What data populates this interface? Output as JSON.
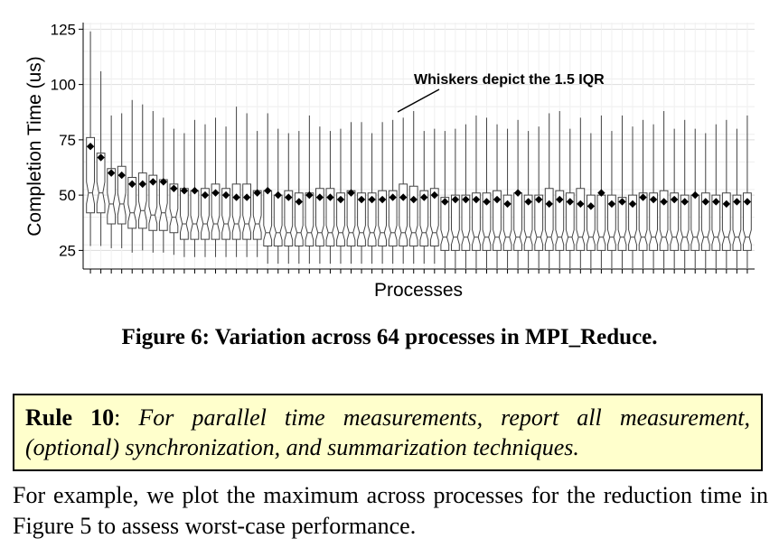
{
  "chart_data": {
    "type": "box",
    "xlabel": "Processes",
    "ylabel": "Completion Time (us)",
    "ylim": [
      17,
      128
    ],
    "yticks": [
      "25",
      "50",
      "75",
      "100",
      "125"
    ],
    "grid": true,
    "annotation": "Whiskers depict the 1.5 IQR",
    "n_boxes": 64,
    "boxes": [
      {
        "min": 27,
        "q1": 42,
        "median": 51,
        "q3": 76,
        "max": 124,
        "mean": 72
      },
      {
        "min": 27,
        "q1": 42,
        "median": 51,
        "q3": 69,
        "max": 106,
        "mean": 67
      },
      {
        "min": 26,
        "q1": 37,
        "median": 46,
        "q3": 62,
        "max": 86,
        "mean": 60
      },
      {
        "min": 26,
        "q1": 37,
        "median": 46,
        "q3": 63,
        "max": 87,
        "mean": 59
      },
      {
        "min": 24,
        "q1": 35,
        "median": 42,
        "q3": 58,
        "max": 93,
        "mean": 55
      },
      {
        "min": 25,
        "q1": 35,
        "median": 43,
        "q3": 60,
        "max": 91,
        "mean": 55
      },
      {
        "min": 24,
        "q1": 34,
        "median": 41,
        "q3": 59,
        "max": 88,
        "mean": 56
      },
      {
        "min": 24,
        "q1": 34,
        "median": 42,
        "q3": 57,
        "max": 85,
        "mean": 56
      },
      {
        "min": 23,
        "q1": 33,
        "median": 40,
        "q3": 55,
        "max": 80,
        "mean": 53
      },
      {
        "min": 22,
        "q1": 30,
        "median": 37,
        "q3": 53,
        "max": 78,
        "mean": 52
      },
      {
        "min": 22,
        "q1": 30,
        "median": 37,
        "q3": 52,
        "max": 84,
        "mean": 52
      },
      {
        "min": 22,
        "q1": 30,
        "median": 37,
        "q3": 53,
        "max": 82,
        "mean": 50
      },
      {
        "min": 22,
        "q1": 30,
        "median": 37,
        "q3": 55,
        "max": 85,
        "mean": 51
      },
      {
        "min": 22,
        "q1": 30,
        "median": 37,
        "q3": 53,
        "max": 81,
        "mean": 50
      },
      {
        "min": 22,
        "q1": 30,
        "median": 37,
        "q3": 55,
        "max": 90,
        "mean": 49
      },
      {
        "min": 22,
        "q1": 30,
        "median": 37,
        "q3": 55,
        "max": 87,
        "mean": 49
      },
      {
        "min": 22,
        "q1": 30,
        "median": 37,
        "q3": 52,
        "max": 79,
        "mean": 51
      },
      {
        "min": 19,
        "q1": 27,
        "median": 33,
        "q3": 52,
        "max": 87,
        "mean": 52
      },
      {
        "min": 19,
        "q1": 27,
        "median": 33,
        "q3": 50,
        "max": 80,
        "mean": 50
      },
      {
        "min": 19,
        "q1": 27,
        "median": 33,
        "q3": 52,
        "max": 78,
        "mean": 49
      },
      {
        "min": 19,
        "q1": 27,
        "median": 33,
        "q3": 51,
        "max": 79,
        "mean": 47
      },
      {
        "min": 19,
        "q1": 27,
        "median": 33,
        "q3": 51,
        "max": 86,
        "mean": 50
      },
      {
        "min": 19,
        "q1": 27,
        "median": 33,
        "q3": 53,
        "max": 81,
        "mean": 49
      },
      {
        "min": 19,
        "q1": 27,
        "median": 33,
        "q3": 53,
        "max": 79,
        "mean": 49
      },
      {
        "min": 19,
        "q1": 27,
        "median": 33,
        "q3": 51,
        "max": 80,
        "mean": 48
      },
      {
        "min": 19,
        "q1": 27,
        "median": 33,
        "q3": 52,
        "max": 83,
        "mean": 51
      },
      {
        "min": 19,
        "q1": 27,
        "median": 33,
        "q3": 51,
        "max": 83,
        "mean": 48
      },
      {
        "min": 19,
        "q1": 27,
        "median": 33,
        "q3": 51,
        "max": 78,
        "mean": 48
      },
      {
        "min": 19,
        "q1": 27,
        "median": 33,
        "q3": 52,
        "max": 83,
        "mean": 48
      },
      {
        "min": 19,
        "q1": 27,
        "median": 33,
        "q3": 52,
        "max": 84,
        "mean": 49
      },
      {
        "min": 19,
        "q1": 27,
        "median": 33,
        "q3": 55,
        "max": 85,
        "mean": 49
      },
      {
        "min": 19,
        "q1": 27,
        "median": 33,
        "q3": 54,
        "max": 88,
        "mean": 48
      },
      {
        "min": 19,
        "q1": 27,
        "median": 33,
        "q3": 52,
        "max": 79,
        "mean": 49
      },
      {
        "min": 19,
        "q1": 27,
        "median": 33,
        "q3": 53,
        "max": 80,
        "mean": 50
      },
      {
        "min": 17,
        "q1": 25,
        "median": 31,
        "q3": 49,
        "max": 79,
        "mean": 47
      },
      {
        "min": 17,
        "q1": 25,
        "median": 31,
        "q3": 50,
        "max": 80,
        "mean": 48
      },
      {
        "min": 17,
        "q1": 25,
        "median": 31,
        "q3": 50,
        "max": 82,
        "mean": 48
      },
      {
        "min": 17,
        "q1": 25,
        "median": 31,
        "q3": 51,
        "max": 86,
        "mean": 48
      },
      {
        "min": 17,
        "q1": 25,
        "median": 31,
        "q3": 51,
        "max": 85,
        "mean": 47
      },
      {
        "min": 17,
        "q1": 25,
        "median": 31,
        "q3": 52,
        "max": 82,
        "mean": 48
      },
      {
        "min": 17,
        "q1": 25,
        "median": 31,
        "q3": 50,
        "max": 80,
        "mean": 46
      },
      {
        "min": 17,
        "q1": 25,
        "median": 31,
        "q3": 51,
        "max": 84,
        "mean": 51
      },
      {
        "min": 17,
        "q1": 25,
        "median": 31,
        "q3": 50,
        "max": 79,
        "mean": 47
      },
      {
        "min": 17,
        "q1": 25,
        "median": 31,
        "q3": 50,
        "max": 81,
        "mean": 48
      },
      {
        "min": 17,
        "q1": 25,
        "median": 31,
        "q3": 53,
        "max": 87,
        "mean": 46
      },
      {
        "min": 17,
        "q1": 25,
        "median": 31,
        "q3": 52,
        "max": 88,
        "mean": 48
      },
      {
        "min": 17,
        "q1": 25,
        "median": 31,
        "q3": 51,
        "max": 80,
        "mean": 47
      },
      {
        "min": 17,
        "q1": 25,
        "median": 31,
        "q3": 53,
        "max": 85,
        "mean": 46
      },
      {
        "min": 17,
        "q1": 25,
        "median": 31,
        "q3": 50,
        "max": 78,
        "mean": 45
      },
      {
        "min": 17,
        "q1": 25,
        "median": 31,
        "q3": 50,
        "max": 86,
        "mean": 51
      },
      {
        "min": 17,
        "q1": 25,
        "median": 31,
        "q3": 50,
        "max": 79,
        "mean": 46
      },
      {
        "min": 17,
        "q1": 25,
        "median": 31,
        "q3": 49,
        "max": 86,
        "mean": 47
      },
      {
        "min": 17,
        "q1": 25,
        "median": 31,
        "q3": 50,
        "max": 81,
        "mean": 46
      },
      {
        "min": 17,
        "q1": 25,
        "median": 31,
        "q3": 51,
        "max": 84,
        "mean": 49
      },
      {
        "min": 17,
        "q1": 25,
        "median": 31,
        "q3": 51,
        "max": 82,
        "mean": 48
      },
      {
        "min": 17,
        "q1": 25,
        "median": 31,
        "q3": 52,
        "max": 88,
        "mean": 47
      },
      {
        "min": 17,
        "q1": 25,
        "median": 31,
        "q3": 51,
        "max": 80,
        "mean": 48
      },
      {
        "min": 17,
        "q1": 25,
        "median": 31,
        "q3": 50,
        "max": 84,
        "mean": 47
      },
      {
        "min": 17,
        "q1": 25,
        "median": 31,
        "q3": 50,
        "max": 80,
        "mean": 50
      },
      {
        "min": 17,
        "q1": 25,
        "median": 31,
        "q3": 51,
        "max": 78,
        "mean": 47
      },
      {
        "min": 17,
        "q1": 25,
        "median": 31,
        "q3": 50,
        "max": 82,
        "mean": 47
      },
      {
        "min": 17,
        "q1": 25,
        "median": 31,
        "q3": 51,
        "max": 84,
        "mean": 46
      },
      {
        "min": 17,
        "q1": 25,
        "median": 31,
        "q3": 50,
        "max": 80,
        "mean": 47
      },
      {
        "min": 17,
        "q1": 25,
        "median": 31,
        "q3": 51,
        "max": 86,
        "mean": 47
      }
    ]
  },
  "caption": "Figure 6: Variation across 64 processes in MPI_Reduce.",
  "rule": {
    "title": "Rule 10",
    "separator": ": ",
    "text": "For parallel time measurements, report all measurement, (optional) synchronization, and summarization techniques."
  },
  "body_text": "For example, we plot the maximum across processes for the reduction time in Figure 5 to assess worst-case performance."
}
